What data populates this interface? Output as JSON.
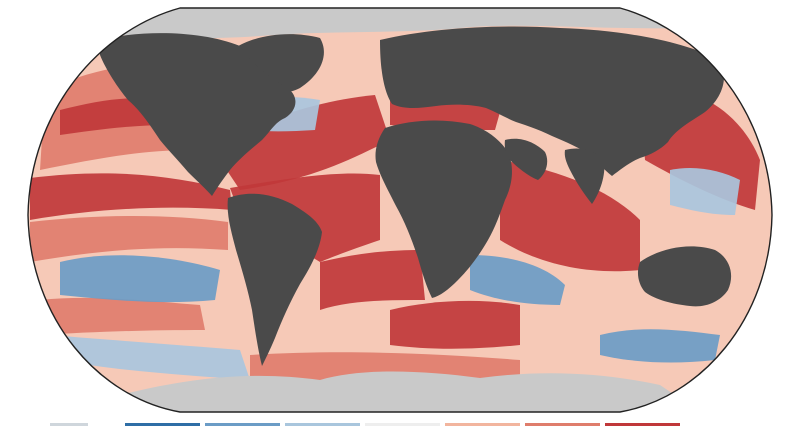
{
  "map": {
    "projection": "robinson",
    "colors": {
      "land": "#4a4a4a",
      "ice": "#c9c9c9",
      "ocean_base": "#f6c9b7",
      "frame": "#222222",
      "page": "#ffffff"
    },
    "regions": [
      {
        "name": "north-america",
        "kind": "land"
      },
      {
        "name": "south-america",
        "kind": "land"
      },
      {
        "name": "greenland",
        "kind": "land"
      },
      {
        "name": "eurasia",
        "kind": "land"
      },
      {
        "name": "africa",
        "kind": "land"
      },
      {
        "name": "arabia",
        "kind": "land"
      },
      {
        "name": "india",
        "kind": "land"
      },
      {
        "name": "australia",
        "kind": "land"
      },
      {
        "name": "antarctica",
        "kind": "ice"
      },
      {
        "name": "arctic-ice",
        "kind": "ice"
      },
      {
        "name": "east-asia-ice",
        "kind": "ice"
      }
    ],
    "anomaly_patches": [
      {
        "name": "north-atlantic-warm",
        "level": "strong-warm"
      },
      {
        "name": "tropical-atlantic-warm",
        "level": "strong-warm"
      },
      {
        "name": "south-atlantic-warm",
        "level": "warm"
      },
      {
        "name": "indian-ocean-warm",
        "level": "strong-warm"
      },
      {
        "name": "eastern-pacific-warm-band",
        "level": "strong-warm"
      },
      {
        "name": "north-pacific-warm",
        "level": "warm"
      },
      {
        "name": "southern-ocean-warm",
        "level": "strong-warm"
      },
      {
        "name": "mediterranean-warm",
        "level": "strong-warm"
      },
      {
        "name": "south-pacific-cool",
        "level": "cool"
      },
      {
        "name": "south-indian-cool",
        "level": "cool"
      },
      {
        "name": "tasman-cool",
        "level": "cool"
      },
      {
        "name": "north-atlantic-cool",
        "level": "slight-cool"
      },
      {
        "name": "west-pacific-cool",
        "level": "slight-cool"
      }
    ]
  },
  "legend": {
    "colors": [
      "#cfd6dc",
      "#2f6ea6",
      "#6b9cc6",
      "#a9c6dd",
      "#eeeeee",
      "#f2b59e",
      "#df7d6c",
      "#c0383a"
    ]
  }
}
